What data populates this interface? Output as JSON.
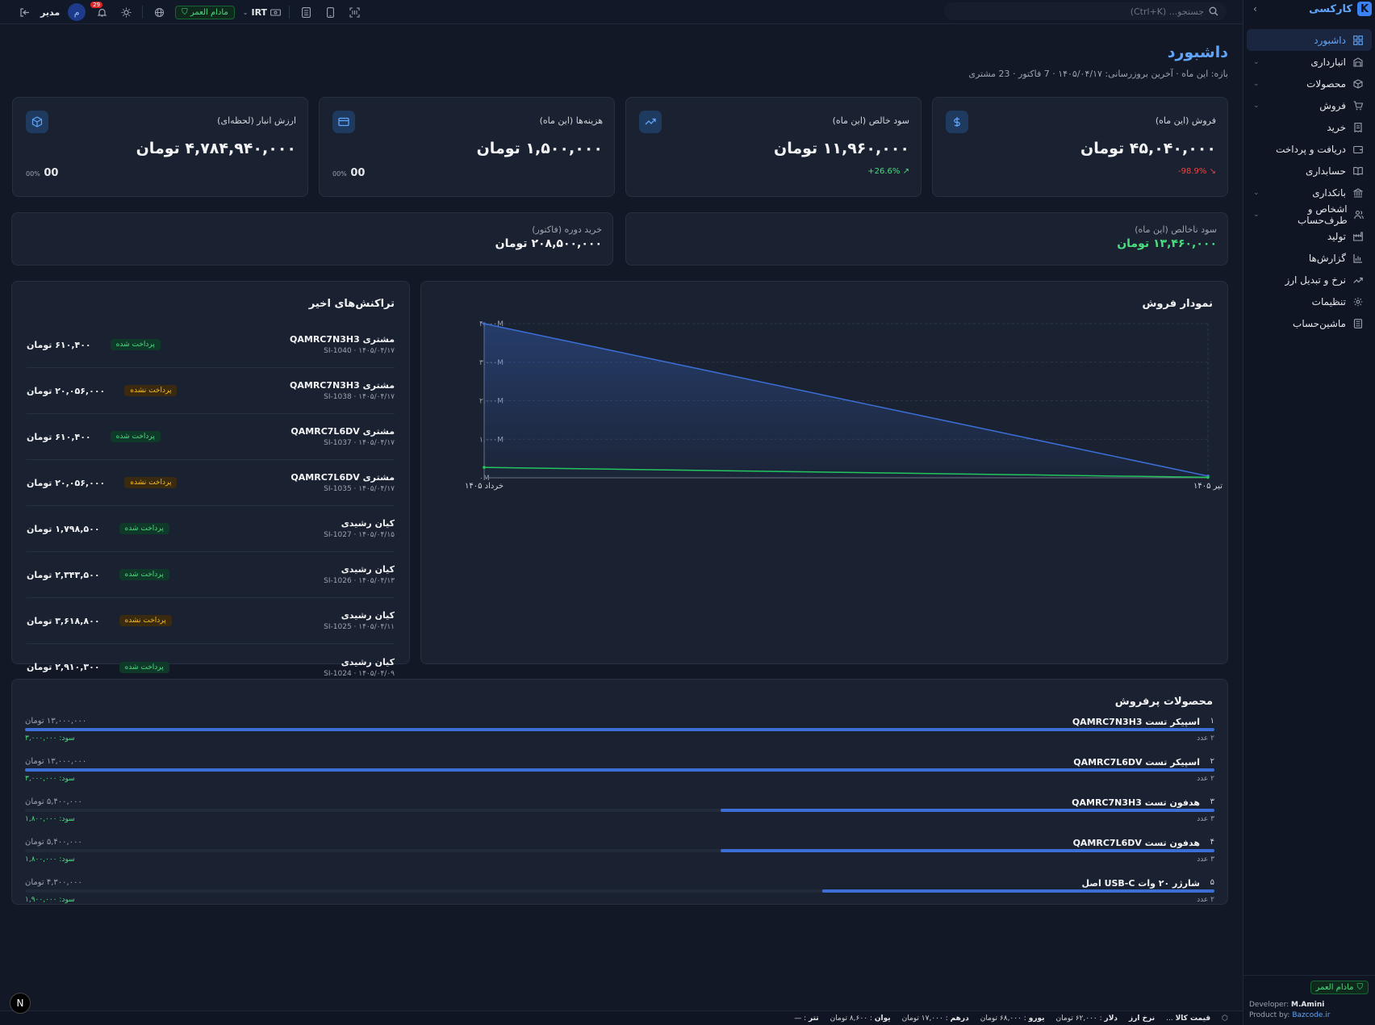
{
  "app": {
    "brand": "کارکسی",
    "logo_letter": "K"
  },
  "sidebar": {
    "items": [
      {
        "label": "داشبورد",
        "icon": "dashboard-icon",
        "active": true
      },
      {
        "label": "انبارداری",
        "icon": "warehouse-icon",
        "chevron": true
      },
      {
        "label": "محصولات",
        "icon": "box-icon",
        "chevron": true
      },
      {
        "label": "فروش",
        "icon": "cart-icon",
        "chevron": true
      },
      {
        "label": "خرید",
        "icon": "receipt-icon"
      },
      {
        "label": "دریافت و پرداخت",
        "icon": "wallet-icon"
      },
      {
        "label": "حسابداری",
        "icon": "book-icon"
      },
      {
        "label": "بانکداری",
        "icon": "bank-icon",
        "chevron": true
      },
      {
        "label": "اشخاص و طرف‌حساب",
        "icon": "people-icon",
        "chevron": true
      },
      {
        "label": "تولید",
        "icon": "factory-icon"
      },
      {
        "label": "گزارش‌ها",
        "icon": "report-icon"
      },
      {
        "label": "نرخ و تبدیل ارز",
        "icon": "trend-icon"
      },
      {
        "label": "تنظیمات",
        "icon": "gear-icon"
      },
      {
        "label": "ماشین‌حساب",
        "icon": "calculator-icon"
      }
    ],
    "footer": {
      "branch": "مادام العمر",
      "developer_label": "Developer:",
      "developer_name": "M.Amini",
      "product_label": "Product by:",
      "product_link": "Bazcode.ir"
    }
  },
  "topbar": {
    "search_placeholder": "جستجو... (Ctrl+K)",
    "currency": "IRT",
    "branch": "مادام العمر",
    "notif_count": "29",
    "user_role": "مدیر",
    "user_initial": "م"
  },
  "page": {
    "title": "داشبورد",
    "subtitle": "بازه: این ماه · آخرین بروزرسانی: ۱۴۰۵/۰۴/۱۷ · 7 فاکتور · 23 مشتری"
  },
  "kpis": [
    {
      "label": "فروش (این ماه)",
      "value": "۴۵,۰۴۰,۰۰۰ تومان",
      "trend": "-98.9%",
      "trend_dir": "down",
      "icon": "dollar-icon"
    },
    {
      "label": "سود خالص (این ماه)",
      "value": "۱۱,۹۶۰,۰۰۰ تومان",
      "trend": "+26.6%",
      "trend_dir": "up",
      "icon": "trend-up-icon"
    },
    {
      "label": "هزینه‌ها (این ماه)",
      "value": "۱,۵۰۰,۰۰۰ تومان",
      "zero": "00",
      "zero_unit": "00%",
      "icon": "card-icon"
    },
    {
      "label": "ارزش انبار (لحظه‌ای)",
      "value": "۴,۷۸۴,۹۴۰,۰۰۰ تومان",
      "zero": "00",
      "zero_unit": "00%",
      "icon": "cube-icon"
    }
  ],
  "secondary": {
    "gross_profit_label": "سود ناخالص (این ماه)",
    "gross_profit_value": "۱۳,۴۶۰,۰۰۰ تومان",
    "purchase_label": "خرید دوره (فاکتور)",
    "purchase_value": "۲۰۸,۵۰۰,۰۰۰ تومان"
  },
  "sales_chart": {
    "title": "نمودار فروش"
  },
  "chart_data": {
    "type": "area",
    "title": "نمودار فروش",
    "categories": [
      "خرداد ۱۴۰۵",
      "تیر ۱۴۰۵"
    ],
    "y_ticks": [
      "۰M",
      "۱,۰۰۰M",
      "۲,۰۰۰M",
      "۳,۰۰۰M",
      "۴,۰۰۰M"
    ],
    "ylim": [
      0,
      4000
    ],
    "grid": true,
    "series": [
      {
        "values": [
          4000,
          45
        ],
        "color": "#3b6fd6",
        "fill": true
      },
      {
        "values": [
          270,
          12
        ],
        "color": "#22c55e",
        "fill": false
      }
    ]
  },
  "transactions": {
    "title": "تراکنش‌های اخیر",
    "rows": [
      {
        "name": "مشتری QAMRC7N3H3",
        "ref": "SI-1040 · ۱۴۰۵/۰۴/۱۷",
        "status": "پرداخت شده",
        "paid": true,
        "amount": "۶۱۰,۴۰۰ تومان"
      },
      {
        "name": "مشتری QAMRC7N3H3",
        "ref": "SI-1038 · ۱۴۰۵/۰۴/۱۷",
        "status": "پرداخت نشده",
        "paid": false,
        "amount": "۲۰,۰۵۶,۰۰۰ تومان"
      },
      {
        "name": "مشتری QAMRC7L6DV",
        "ref": "SI-1037 · ۱۴۰۵/۰۴/۱۷",
        "status": "پرداخت شده",
        "paid": true,
        "amount": "۶۱۰,۴۰۰ تومان"
      },
      {
        "name": "مشتری QAMRC7L6DV",
        "ref": "SI-1035 · ۱۴۰۵/۰۴/۱۷",
        "status": "پرداخت نشده",
        "paid": false,
        "amount": "۲۰,۰۵۶,۰۰۰ تومان"
      },
      {
        "name": "کیان رشیدی",
        "ref": "SI-1027 · ۱۴۰۵/۰۴/۱۵",
        "status": "پرداخت شده",
        "paid": true,
        "amount": "۱,۷۹۸,۵۰۰ تومان"
      },
      {
        "name": "کیان رشیدی",
        "ref": "SI-1026 · ۱۴۰۵/۰۴/۱۳",
        "status": "پرداخت شده",
        "paid": true,
        "amount": "۲,۳۴۳,۵۰۰ تومان"
      },
      {
        "name": "کیان رشیدی",
        "ref": "SI-1025 · ۱۴۰۵/۰۴/۱۱",
        "status": "پرداخت نشده",
        "paid": false,
        "amount": "۳,۶۱۸,۸۰۰ تومان"
      },
      {
        "name": "کیان رشیدی",
        "ref": "SI-1024 · ۱۴۰۵/۰۴/۰۹",
        "status": "پرداخت شده",
        "paid": true,
        "amount": "۲,۹۱۰,۳۰۰ تومان"
      }
    ]
  },
  "top_products": {
    "title": "محصولات پرفروش",
    "rows": [
      {
        "rank": "۱",
        "name": "اسپیکر تست QAMRC7N3H3",
        "amount": "۱۳,۰۰۰,۰۰۰ تومان",
        "qty": "۲ عدد",
        "profit": "سود: ۳,۰۰۰,۰۰۰",
        "share": 1.0
      },
      {
        "rank": "۲",
        "name": "اسپیکر تست QAMRC7L6DV",
        "amount": "۱۳,۰۰۰,۰۰۰ تومان",
        "qty": "۲ عدد",
        "profit": "سود: ۳,۰۰۰,۰۰۰",
        "share": 1.0
      },
      {
        "rank": "۳",
        "name": "هدفون تست QAMRC7N3H3",
        "amount": "۵,۴۰۰,۰۰۰ تومان",
        "qty": "۳ عدد",
        "profit": "سود: ۱,۸۰۰,۰۰۰",
        "share": 0.415
      },
      {
        "rank": "۴",
        "name": "هدفون تست QAMRC7L6DV",
        "amount": "۵,۴۰۰,۰۰۰ تومان",
        "qty": "۳ عدد",
        "profit": "سود: ۱,۸۰۰,۰۰۰",
        "share": 0.415
      },
      {
        "rank": "۵",
        "name": "شارژر ۲۰ وات USB-C اصل",
        "amount": "۴,۳۰۰,۰۰۰ تومان",
        "qty": "۲ عدد",
        "profit": "سود: ۱,۹۰۰,۰۰۰",
        "share": 0.33
      }
    ]
  },
  "bottombar": {
    "items": [
      {
        "k": "قیمت کالا",
        "v": "..."
      },
      {
        "k": "نرخ ارز",
        "v": ""
      },
      {
        "k": "دلار",
        "v": ": ۶۲,۰۰۰ تومان"
      },
      {
        "k": "یورو",
        "v": ": ۶۸,۰۰۰ تومان"
      },
      {
        "k": "درهم",
        "v": ": ۱۷,۰۰۰ تومان"
      },
      {
        "k": "یوان",
        "v": ": ۸,۶۰۰ تومان"
      },
      {
        "k": "تتر",
        "v": ": —"
      }
    ]
  },
  "fab_letter": "N"
}
